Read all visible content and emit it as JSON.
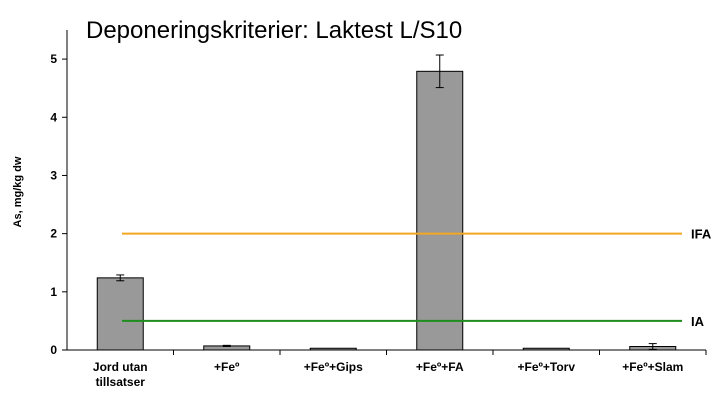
{
  "chart_data": {
    "type": "bar",
    "title": "Deponeringskriterier: Laktest L/S10",
    "xlabel": "",
    "ylabel": "As, mg/kg dw",
    "ylim": [
      0,
      5.5
    ],
    "yticks": [
      "0",
      "1",
      "2",
      "3",
      "4",
      "5"
    ],
    "grid": false,
    "categories": [
      [
        "Jord utan",
        "tillsatser"
      ],
      [
        "+Feº"
      ],
      [
        "+Feº+Gips"
      ],
      [
        "+Feº+FA"
      ],
      [
        "+Feº+Torv"
      ],
      [
        "+Feº+Slam"
      ]
    ],
    "values": [
      1.24,
      0.07,
      0.03,
      4.79,
      0.03,
      0.06
    ],
    "error": [
      0.05,
      0.01,
      0.0,
      0.28,
      0.0,
      0.05
    ],
    "bar_color": "#999999",
    "reference_lines": [
      {
        "name": "IFA",
        "value": 2.0,
        "color": "#f5a623"
      },
      {
        "name": "IA",
        "value": 0.5,
        "color": "#1e8c1e"
      }
    ]
  }
}
